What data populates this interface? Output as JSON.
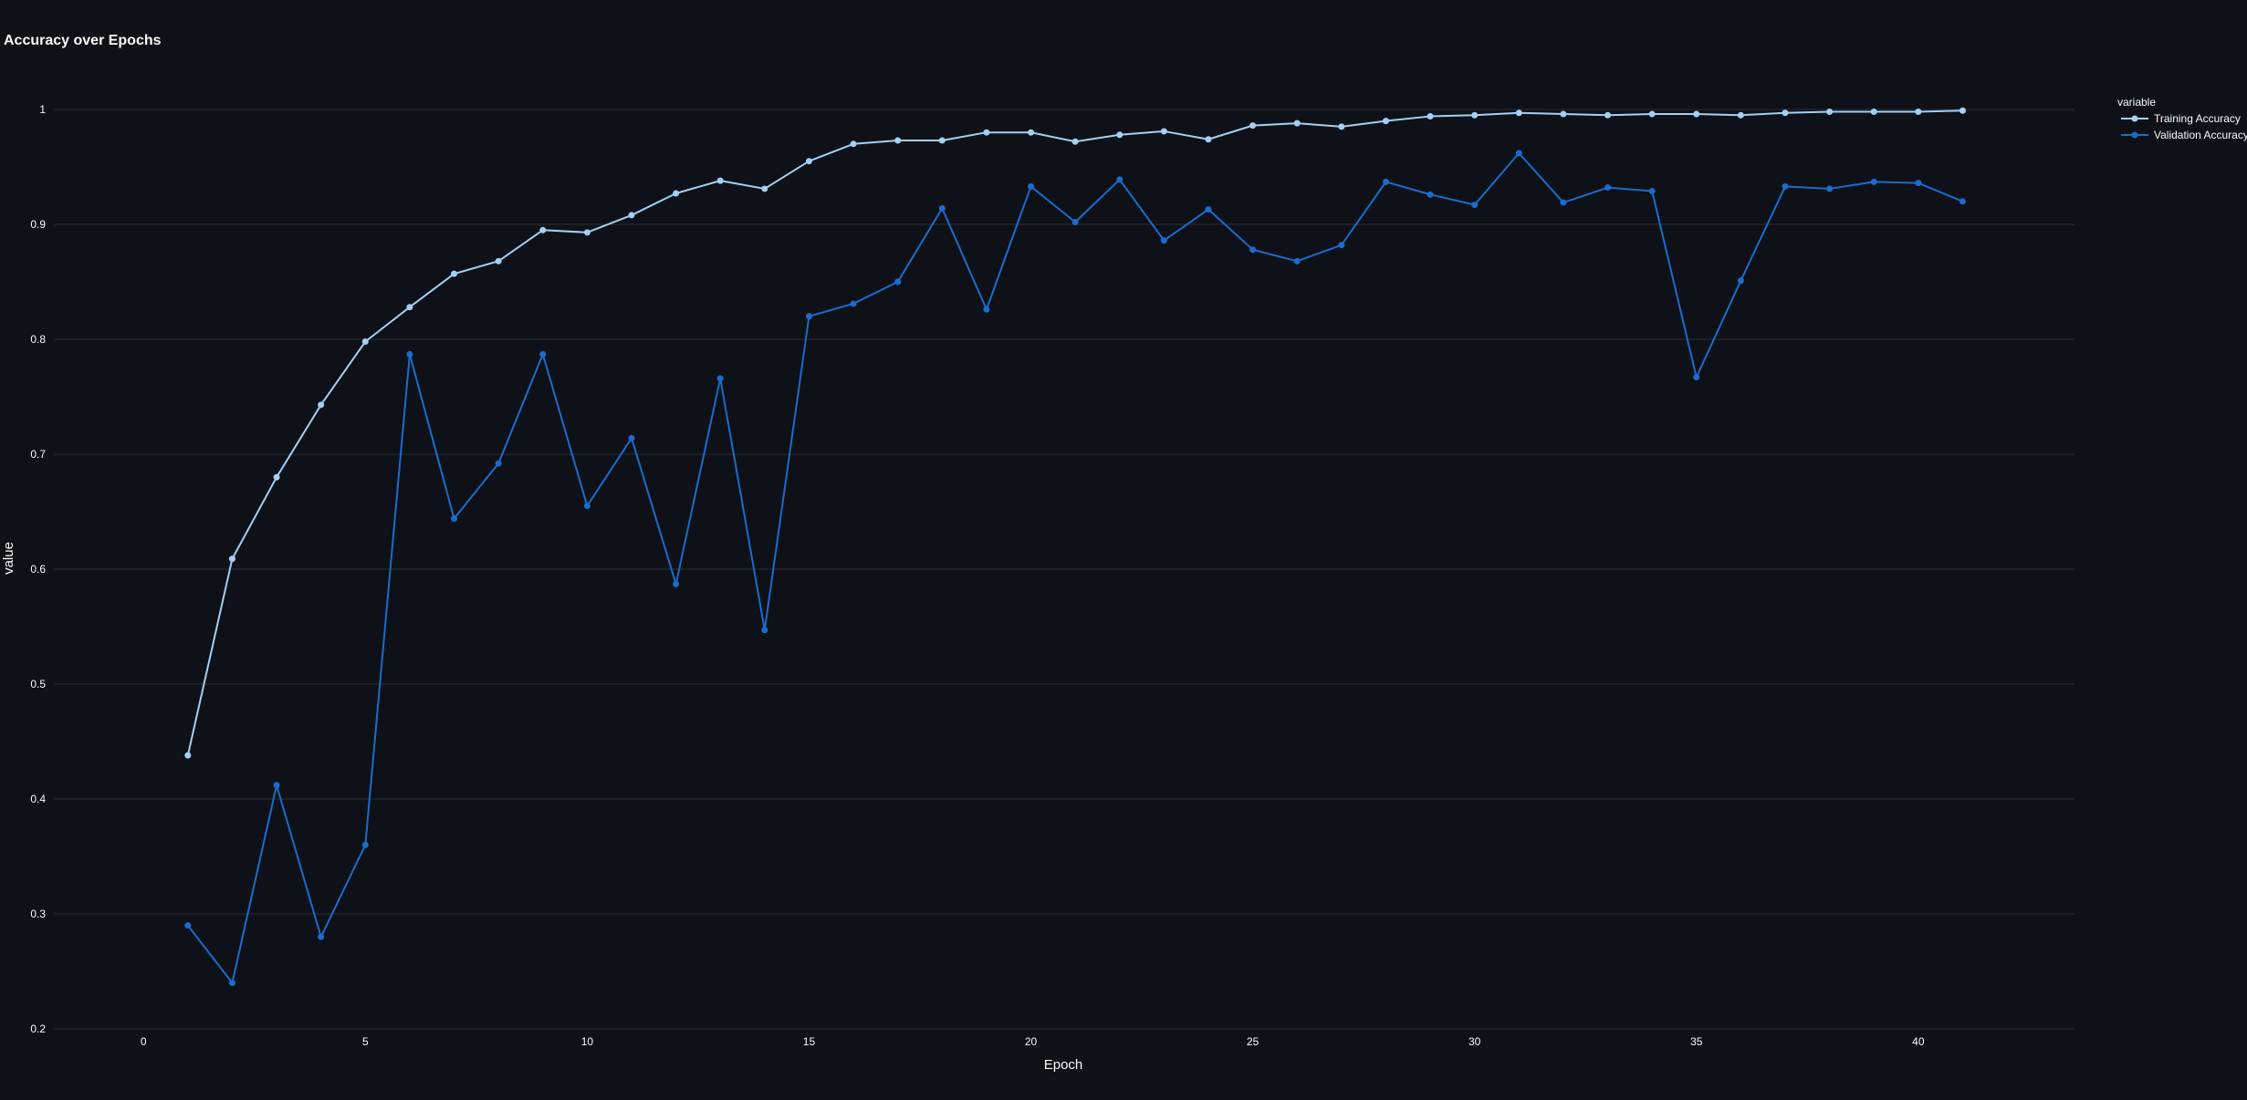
{
  "chart_data": {
    "type": "line",
    "title": "Accuracy over Epochs",
    "xlabel": "Epoch",
    "ylabel": "value",
    "xlim": [
      -2,
      43.5
    ],
    "ylim": [
      0.2,
      1.0
    ],
    "x_ticks": [
      0,
      5,
      10,
      15,
      20,
      25,
      30,
      35,
      40
    ],
    "y_ticks": [
      0.2,
      0.3,
      0.4,
      0.5,
      0.6,
      0.7,
      0.8,
      0.9,
      1
    ],
    "grid": true,
    "legend": {
      "title": "variable",
      "placement": "top-right"
    },
    "x": [
      1,
      2,
      3,
      4,
      5,
      6,
      7,
      8,
      9,
      10,
      11,
      12,
      13,
      14,
      15,
      16,
      17,
      18,
      19,
      20,
      21,
      22,
      23,
      24,
      25,
      26,
      27,
      28,
      29,
      30,
      31,
      32,
      33,
      34,
      35,
      36,
      37,
      38,
      39,
      40,
      41
    ],
    "series": [
      {
        "name": "Training Accuracy",
        "color": "#a3d0f5",
        "values": [
          0.438,
          0.609,
          0.68,
          0.743,
          0.798,
          0.828,
          0.857,
          0.868,
          0.895,
          0.893,
          0.908,
          0.927,
          0.938,
          0.931,
          0.955,
          0.97,
          0.973,
          0.973,
          0.98,
          0.98,
          0.972,
          0.978,
          0.981,
          0.974,
          0.986,
          0.988,
          0.985,
          0.99,
          0.994,
          0.995,
          0.997,
          0.996,
          0.995,
          0.996,
          0.996,
          0.995,
          0.997,
          0.998,
          0.998,
          0.998,
          0.999
        ]
      },
      {
        "name": "Validation Accuracy",
        "color": "#1a6ccd",
        "values": [
          0.29,
          0.24,
          0.412,
          0.28,
          0.36,
          0.787,
          0.644,
          0.692,
          0.787,
          0.655,
          0.714,
          0.587,
          0.766,
          0.547,
          0.82,
          0.831,
          0.85,
          0.914,
          0.826,
          0.933,
          0.902,
          0.939,
          0.886,
          0.913,
          0.878,
          0.868,
          0.882,
          0.937,
          0.926,
          0.917,
          0.962,
          0.919,
          0.932,
          0.929,
          0.767,
          0.851,
          0.933,
          0.931,
          0.937,
          0.936,
          0.92
        ]
      }
    ]
  }
}
